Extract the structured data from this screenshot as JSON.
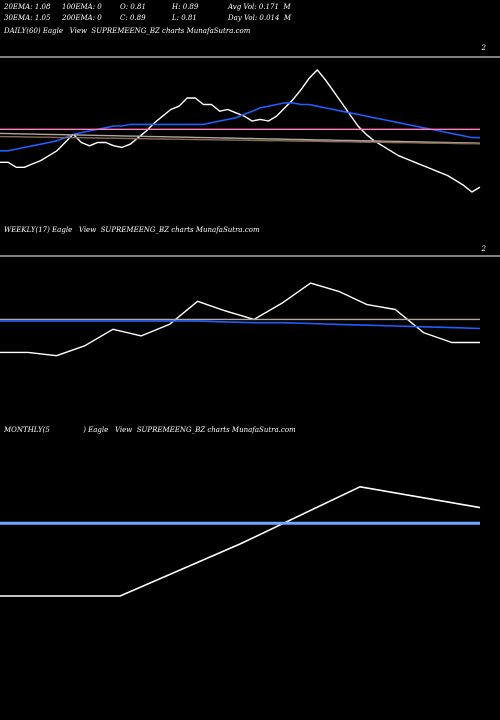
{
  "header": {
    "row1": [
      "20EMA: 1.08",
      "100EMA: 0",
      "O: 0.81",
      "H: 0.89",
      "Avg Vol: 0.171  M"
    ],
    "row2": [
      "30EMA: 1.05",
      "200EMA: 0",
      "C: 0.89",
      "L: 0.81",
      "Day Vol: 0.014  M"
    ]
  },
  "panels": {
    "daily": {
      "label": "DAILY(60) Eagle   View  SUPREMEENG_BZ charts MunafaSutra.com",
      "tick": "2"
    },
    "weekly": {
      "label": "WEEKLY(17) Eagle   View  SUPREMEENG_BZ charts MunafaSutra.com",
      "tick": "2"
    },
    "monthly": {
      "label": "MONTHLY(5               ) Eagle   View  SUPREMEENG_BZ charts MunafaSutra.com"
    }
  },
  "colors": {
    "background": "#000000",
    "price": "#ffffff",
    "ema_blue": "#1f5fff",
    "ema_light_blue": "#6fa8ff",
    "ema_pink": "#ff7fbf",
    "ema_grey": "#b0a8a0",
    "ema_brown": "#8a6a50"
  },
  "chart_data": [
    {
      "type": "line",
      "panel": "daily",
      "series": [
        {
          "color": "#ffffff",
          "values": [
            38,
            38,
            35,
            35,
            37,
            39,
            42,
            45,
            50,
            55,
            50,
            48,
            50,
            50,
            48,
            47,
            49,
            53,
            57,
            62,
            66,
            70,
            72,
            77,
            77,
            73,
            73,
            69,
            70,
            68,
            66,
            63,
            64,
            63,
            66,
            71,
            76,
            82,
            89,
            94,
            88,
            81,
            74,
            67,
            60,
            55,
            51,
            48,
            45,
            42,
            40,
            38,
            36,
            34,
            32,
            30,
            27,
            24,
            20,
            23
          ]
        },
        {
          "color": "#1f5fff",
          "values": [
            45,
            45,
            46,
            47,
            48,
            49,
            50,
            51,
            53,
            55,
            56,
            57,
            58,
            59,
            60,
            60,
            61,
            61,
            61,
            61,
            61,
            61,
            61,
            61,
            61,
            61,
            62,
            63,
            64,
            65,
            67,
            69,
            71,
            72,
            73,
            74,
            74,
            73,
            73,
            72,
            71,
            70,
            69,
            68,
            67,
            66,
            65,
            64,
            63,
            62,
            61,
            60,
            59,
            58,
            57,
            56,
            55,
            54,
            53,
            53
          ]
        },
        {
          "color": "#ff7fbf",
          "values": [
            58,
            58,
            58,
            58,
            58,
            58,
            58,
            58,
            58,
            58,
            58,
            58,
            58,
            58,
            58,
            58,
            58,
            58,
            58,
            58,
            58,
            58,
            58,
            58,
            58,
            58,
            58,
            58,
            58,
            58,
            58,
            58,
            58,
            58,
            58,
            58,
            58,
            58,
            58,
            58,
            58,
            58,
            58,
            58,
            58,
            58,
            58,
            58,
            58,
            58,
            58,
            58,
            58,
            58,
            58,
            58,
            58,
            58,
            58,
            58
          ]
        },
        {
          "color": "#b0a8a0",
          "values": [
            55.5,
            55.4,
            55.3,
            55.2,
            55.1,
            55,
            54.9,
            54.8,
            54.7,
            54.6,
            54.5,
            54.4,
            54.3,
            54.2,
            54.1,
            54,
            53.9,
            53.8,
            53.7,
            53.6,
            53.5,
            53.4,
            53.3,
            53.2,
            53.1,
            53,
            52.9,
            52.8,
            52.7,
            52.6,
            52.5,
            52.4,
            52.3,
            52.2,
            52.1,
            52,
            51.9,
            51.8,
            51.7,
            51.6,
            51.5,
            51.4,
            51.3,
            51.2,
            51.1,
            51,
            50.9,
            50.8,
            50.7,
            50.6,
            50.5,
            50.4,
            50.3,
            50.2,
            50.1,
            50,
            49.9,
            49.8,
            49.7,
            49.6
          ]
        },
        {
          "color": "#8a6a50",
          "values": [
            53.6,
            53.5,
            53.5,
            53.4,
            53.3,
            53.2,
            53.2,
            53.1,
            53,
            52.9,
            52.9,
            52.8,
            52.7,
            52.6,
            52.6,
            52.5,
            52.4,
            52.3,
            52.3,
            52.2,
            52.1,
            52,
            52,
            51.9,
            51.8,
            51.7,
            51.7,
            51.6,
            51.5,
            51.4,
            51.4,
            51.3,
            51.2,
            51.1,
            51.1,
            51,
            50.9,
            50.8,
            50.8,
            50.7,
            50.6,
            50.5,
            50.5,
            50.4,
            50.3,
            50.2,
            50.2,
            50.1,
            50,
            49.9,
            49.9,
            49.8,
            49.7,
            49.6,
            49.6,
            49.5,
            49.4,
            49.3,
            49.3,
            49.2
          ]
        }
      ]
    },
    {
      "type": "line",
      "panel": "weekly",
      "series": [
        {
          "color": "#ffffff",
          "values": [
            44,
            44,
            42,
            48,
            58,
            54,
            61,
            75,
            69,
            64,
            74,
            86,
            81,
            73,
            70,
            56,
            50,
            50
          ]
        },
        {
          "color": "#1f5fff",
          "values": [
            63,
            63,
            63,
            63,
            63,
            63,
            63,
            63,
            62.5,
            62,
            62,
            61.5,
            61,
            60.5,
            60,
            59.5,
            59,
            58.5
          ]
        },
        {
          "color": "#b0a8a0",
          "values": [
            64,
            64,
            64,
            64,
            64,
            64,
            64,
            64,
            64,
            64,
            64,
            64,
            64,
            64,
            64,
            64,
            64,
            64
          ]
        }
      ]
    },
    {
      "type": "line",
      "panel": "monthly",
      "series": [
        {
          "color": "#ffffff",
          "values": [
            40,
            40,
            60,
            82,
            74
          ]
        },
        {
          "color": "#6fa8ff",
          "values": [
            68,
            68,
            68,
            68,
            68
          ]
        }
      ]
    }
  ]
}
